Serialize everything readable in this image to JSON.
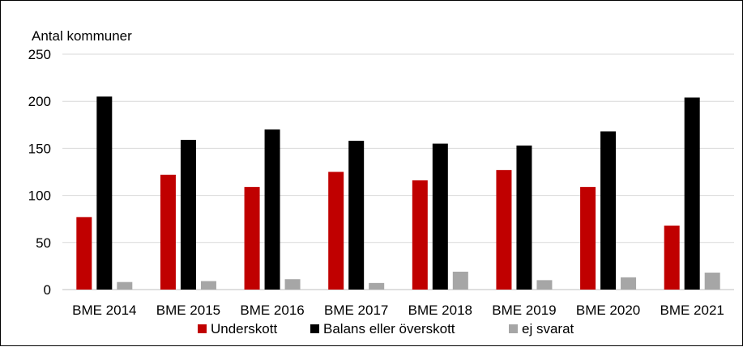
{
  "chart_data": {
    "type": "bar",
    "ylabel": "Antal kommuner",
    "ylim": [
      0,
      250
    ],
    "yticks": [
      0,
      50,
      100,
      150,
      200,
      250
    ],
    "grid": true,
    "legend_position": "bottom",
    "categories": [
      "BME 2014",
      "BME 2015",
      "BME 2016",
      "BME 2017",
      "BME 2018",
      "BME 2019",
      "BME 2020",
      "BME 2021"
    ],
    "series": [
      {
        "name": "Underskott",
        "color": "#c00000",
        "values": [
          77,
          122,
          109,
          125,
          116,
          127,
          109,
          68
        ]
      },
      {
        "name": "Balans eller överskott",
        "color": "#000000",
        "values": [
          205,
          159,
          170,
          158,
          155,
          153,
          168,
          204
        ]
      },
      {
        "name": "ej svarat",
        "color": "#a6a6a6",
        "values": [
          8,
          9,
          11,
          7,
          19,
          10,
          13,
          18
        ]
      }
    ]
  }
}
